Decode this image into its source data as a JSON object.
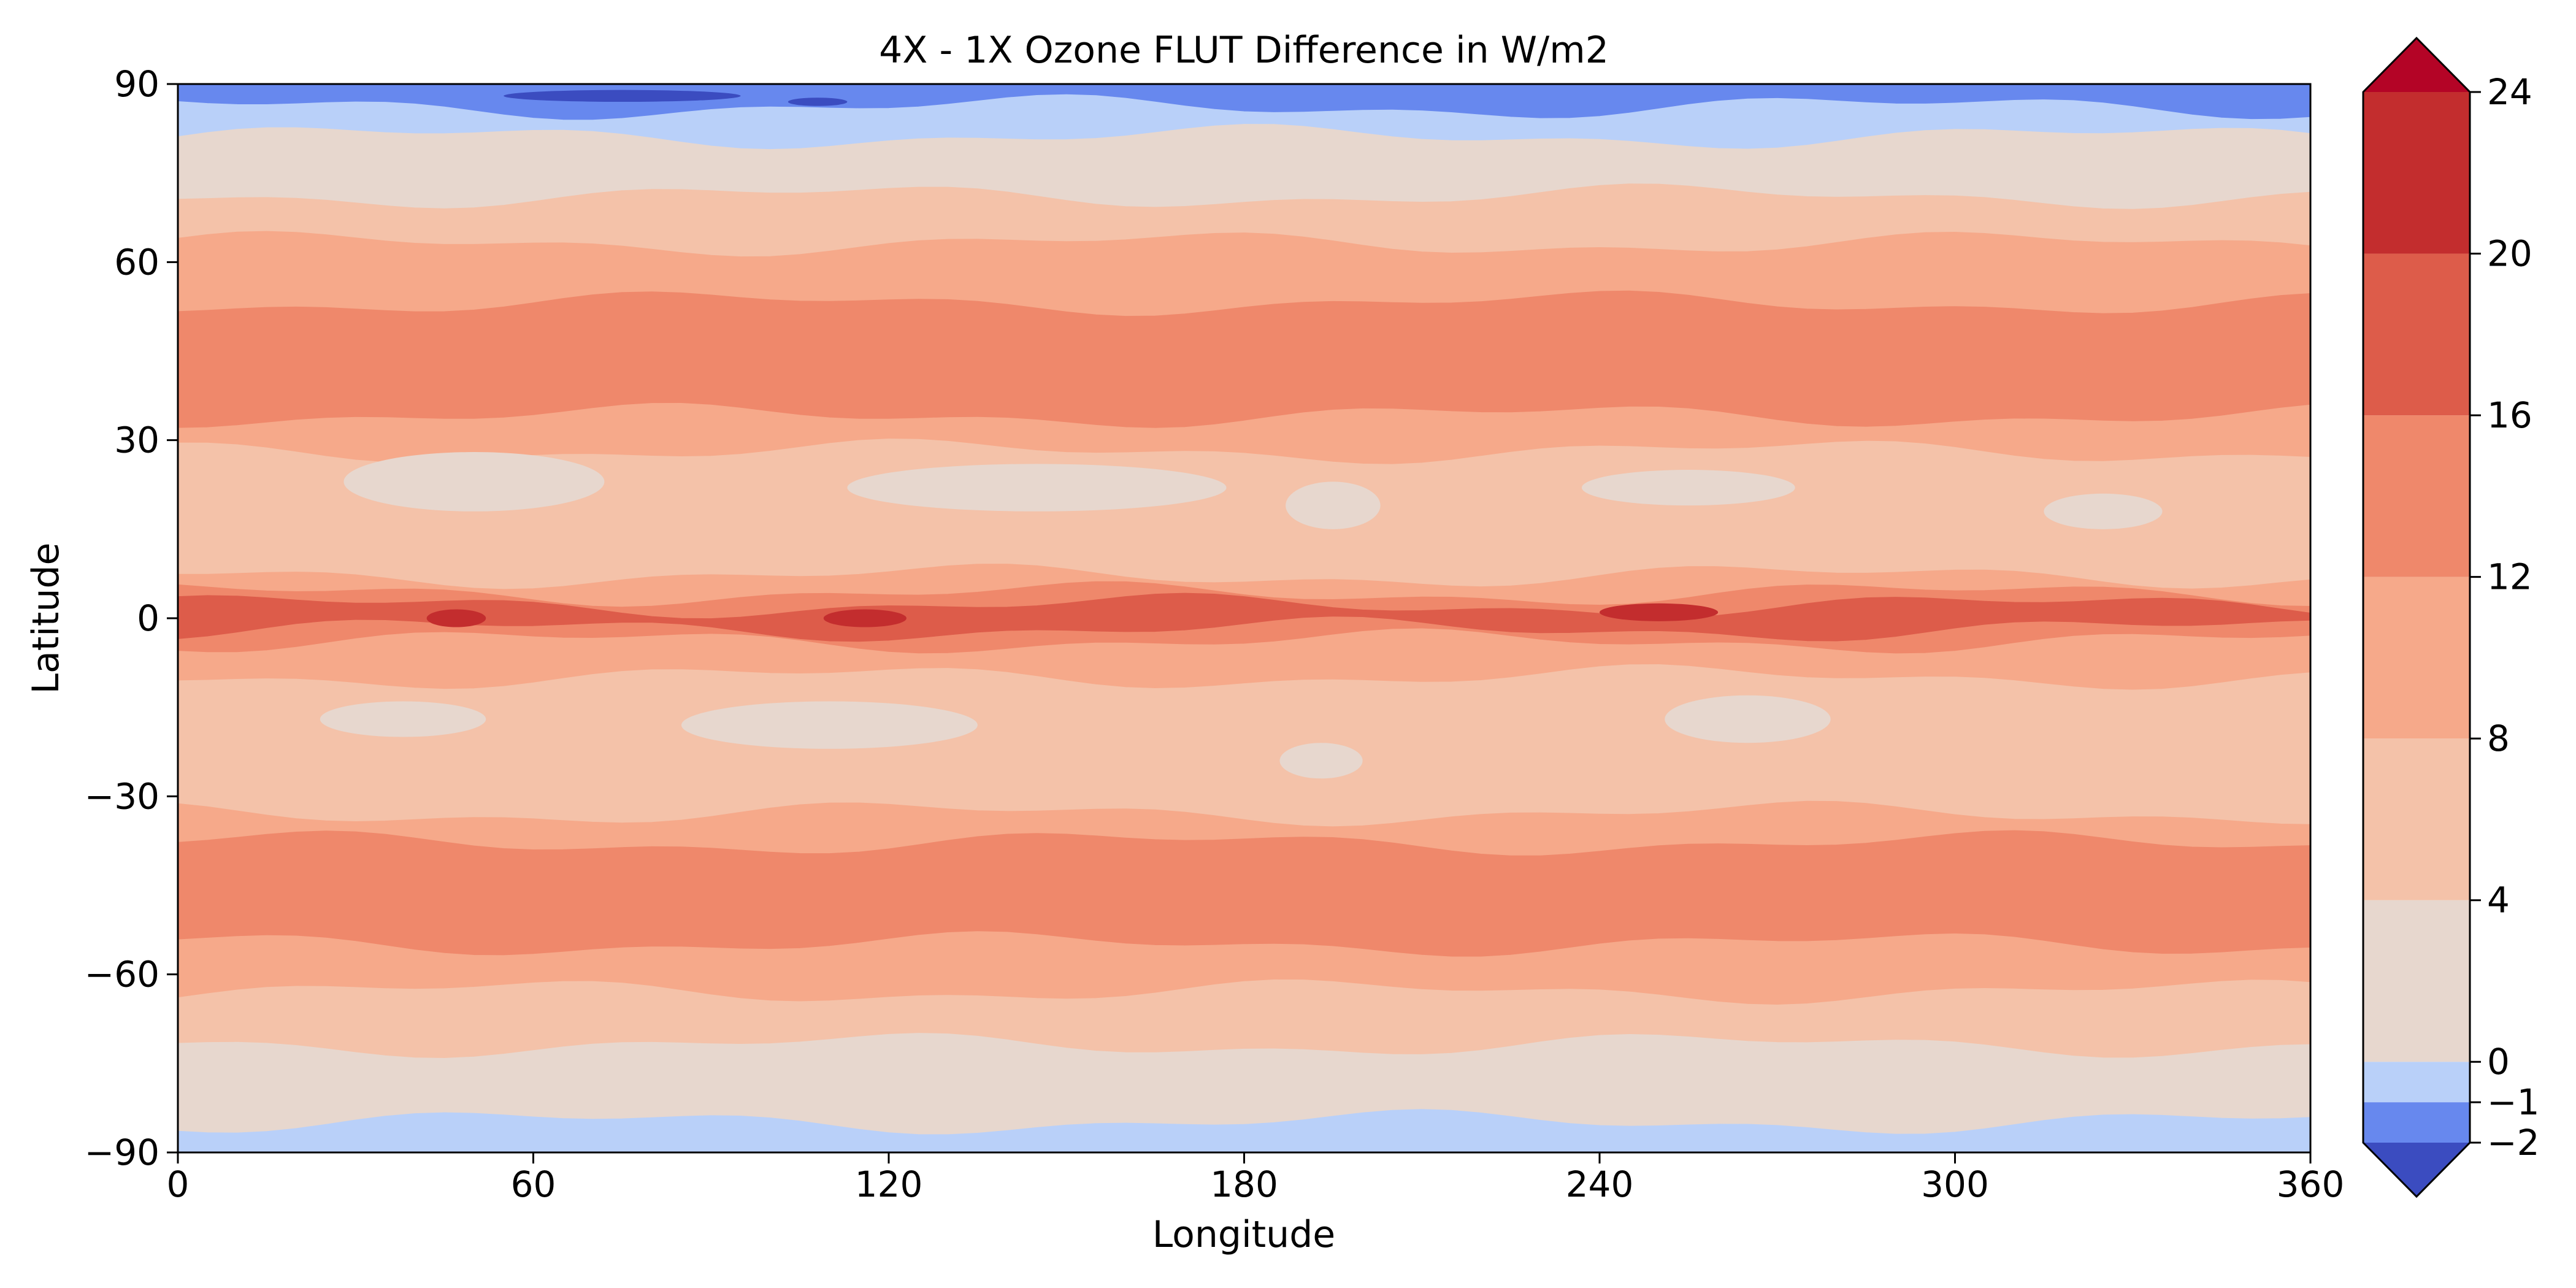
{
  "chart_data": {
    "type": "heatmap",
    "title": "4X - 1X Ozone FLUT Difference in W/m2",
    "xlabel": "Longitude",
    "ylabel": "Latitude",
    "xlim": [
      0,
      360
    ],
    "ylim": [
      -90,
      90
    ],
    "xticks": [
      0,
      60,
      120,
      180,
      240,
      300,
      360
    ],
    "yticks": [
      -90,
      -60,
      -30,
      0,
      30,
      60,
      90
    ],
    "ytick_labels": [
      "−90",
      "−60",
      "−30",
      "0",
      "30",
      "60",
      "90"
    ],
    "colorbar": {
      "levels": [
        -2,
        -1,
        0,
        4,
        8,
        12,
        16,
        20,
        24
      ],
      "tick_labels": [
        "−2",
        "−1",
        "0",
        "4",
        "8",
        "12",
        "16",
        "20",
        "24"
      ],
      "under_color": "#3b4cc0",
      "over_color": "#b40426",
      "colors": [
        "#6788ee",
        "#b9d0f9",
        "#e7d7ce",
        "#f4c2a9",
        "#f6a98a",
        "#ef886b",
        "#dd5c4a",
        "#c32d2e"
      ]
    },
    "zonal_bands": [
      {
        "lat_min": 86,
        "lat_max": 90,
        "level": "-2 to -1"
      },
      {
        "lat_min": 81,
        "lat_max": 86,
        "level": "-1 to 0"
      },
      {
        "lat_min": 71,
        "lat_max": 81,
        "level": "0 to 4"
      },
      {
        "lat_min": 63,
        "lat_max": 71,
        "level": "4 to 8"
      },
      {
        "lat_min": 53,
        "lat_max": 63,
        "level": "8 to 12"
      },
      {
        "lat_min": 34,
        "lat_max": 53,
        "level": "12 to 16"
      },
      {
        "lat_min": 28,
        "lat_max": 34,
        "level": "8 to 12"
      },
      {
        "lat_min": 7,
        "lat_max": 28,
        "level": "4 to 8"
      },
      {
        "lat_min": 4,
        "lat_max": 7,
        "level": "8 to 12"
      },
      {
        "lat_min": 2,
        "lat_max": 4,
        "level": "12 to 16"
      },
      {
        "lat_min": -2,
        "lat_max": 2,
        "level": "16 to 20"
      },
      {
        "lat_min": -4,
        "lat_max": -2,
        "level": "12 to 16"
      },
      {
        "lat_min": -10,
        "lat_max": -4,
        "level": "8 to 12"
      },
      {
        "lat_min": -33,
        "lat_max": -10,
        "level": "4 to 8"
      },
      {
        "lat_min": -38,
        "lat_max": -33,
        "level": "8 to 12"
      },
      {
        "lat_min": -55,
        "lat_max": -38,
        "level": "12 to 16"
      },
      {
        "lat_min": -63,
        "lat_max": -55,
        "level": "8 to 12"
      },
      {
        "lat_min": -72,
        "lat_max": -63,
        "level": "4 to 8"
      },
      {
        "lat_min": -85,
        "lat_max": -72,
        "level": "0 to 4"
      },
      {
        "lat_min": -90,
        "lat_max": -85,
        "level": "-1 to 0"
      }
    ],
    "patches": [
      {
        "lon": 50,
        "lat": 23,
        "dlon": 22,
        "dlat": 5,
        "level": "0 to 4"
      },
      {
        "lon": 145,
        "lat": 22,
        "dlon": 32,
        "dlat": 4,
        "level": "0 to 4"
      },
      {
        "lon": 195,
        "lat": 19,
        "dlon": 8,
        "dlat": 4,
        "level": "0 to 4"
      },
      {
        "lon": 255,
        "lat": 22,
        "dlon": 18,
        "dlat": 3,
        "level": "0 to 4"
      },
      {
        "lon": 325,
        "lat": 18,
        "dlon": 10,
        "dlat": 3,
        "level": "0 to 4"
      },
      {
        "lon": 38,
        "lat": -17,
        "dlon": 14,
        "dlat": 3,
        "level": "0 to 4"
      },
      {
        "lon": 110,
        "lat": -18,
        "dlon": 25,
        "dlat": 4,
        "level": "0 to 4"
      },
      {
        "lon": 193,
        "lat": -24,
        "dlon": 7,
        "dlat": 3,
        "level": "0 to 4"
      },
      {
        "lon": 265,
        "lat": -17,
        "dlon": 14,
        "dlat": 4,
        "level": "0 to 4"
      },
      {
        "lon": 47,
        "lat": 0,
        "dlon": 5,
        "dlat": 1.5,
        "level": "20 to 24"
      },
      {
        "lon": 116,
        "lat": 0,
        "dlon": 7,
        "dlat": 1.5,
        "level": "20 to 24"
      },
      {
        "lon": 250,
        "lat": 1,
        "dlon": 10,
        "dlat": 1.5,
        "level": "20 to 24"
      },
      {
        "lon": 75,
        "lat": 88,
        "dlon": 20,
        "dlat": 1,
        "level": "< -2"
      },
      {
        "lon": 108,
        "lat": 87,
        "dlon": 5,
        "dlat": 0.7,
        "level": "< -2"
      }
    ]
  }
}
